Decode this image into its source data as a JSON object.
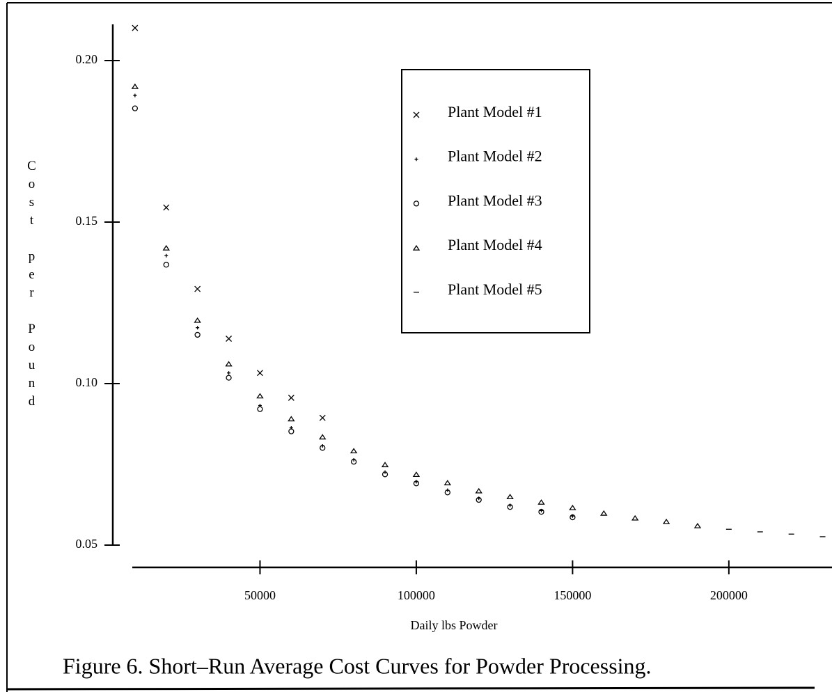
{
  "chart_data": {
    "type": "scatter",
    "title": "Figure 6.  Short–Run Average Cost Curves for Powder Processing.",
    "xlabel": "Daily lbs Powder",
    "ylabel": "Cost per Pound",
    "xlim": [
      2900,
      233000
    ],
    "ylim": [
      0.0431,
      0.2112
    ],
    "xticks": [
      50000,
      100000,
      150000,
      200000
    ],
    "yticks": [
      {
        "value": 0.2,
        "label": "0.20"
      },
      0.15,
      {
        "value": 0.1,
        "label": "0.10"
      },
      0.05
    ],
    "legend": "top-right",
    "series": [
      {
        "name": "Plant Model #1",
        "marker": "x",
        "color": "#000000",
        "x": [
          10000,
          20000,
          30000,
          40000,
          50000,
          60000,
          70000
        ],
        "values": [
          0.2101,
          0.1545,
          0.1293,
          0.1139,
          0.1033,
          0.0956,
          0.0894
        ]
      },
      {
        "name": "Plant Model #2",
        "marker": "+",
        "color": "#000000",
        "x": [
          10000,
          20000,
          30000,
          40000,
          50000,
          60000,
          70000,
          80000,
          90000,
          100000,
          110000,
          120000,
          130000,
          140000,
          150000
        ],
        "values": [
          0.1892,
          0.1396,
          0.1173,
          0.1033,
          0.0932,
          0.0863,
          0.0807,
          0.0764,
          0.0726,
          0.0696,
          0.067,
          0.0645,
          0.0623,
          0.0607,
          0.059
        ]
      },
      {
        "name": "Plant Model #3",
        "marker": "o",
        "color": "#000000",
        "x": [
          10000,
          20000,
          30000,
          40000,
          50000,
          60000,
          70000,
          80000,
          90000,
          100000,
          110000,
          120000,
          130000,
          140000,
          150000
        ],
        "values": [
          0.1852,
          0.1368,
          0.1151,
          0.1018,
          0.0921,
          0.0852,
          0.0801,
          0.0758,
          0.0719,
          0.0691,
          0.0663,
          0.064,
          0.0618,
          0.0603,
          0.0586
        ]
      },
      {
        "name": "Plant Model #4",
        "marker": "triangle",
        "color": "#000000",
        "x": [
          10000,
          20000,
          30000,
          40000,
          50000,
          60000,
          70000,
          80000,
          90000,
          100000,
          110000,
          120000,
          130000,
          140000,
          150000,
          160000,
          170000,
          180000,
          190000
        ],
        "values": [
          0.192,
          0.142,
          0.1196,
          0.1061,
          0.0962,
          0.0891,
          0.0835,
          0.0792,
          0.0749,
          0.0719,
          0.0693,
          0.0668,
          0.065,
          0.0633,
          0.0616,
          0.0599,
          0.0584,
          0.0573,
          0.056
        ]
      },
      {
        "name": "Plant Model #5",
        "marker": "dash",
        "color": "#000000",
        "x": [
          200000,
          210000,
          220000,
          230000
        ],
        "values": [
          0.0549,
          0.0541,
          0.0534,
          0.0526
        ]
      }
    ]
  }
}
